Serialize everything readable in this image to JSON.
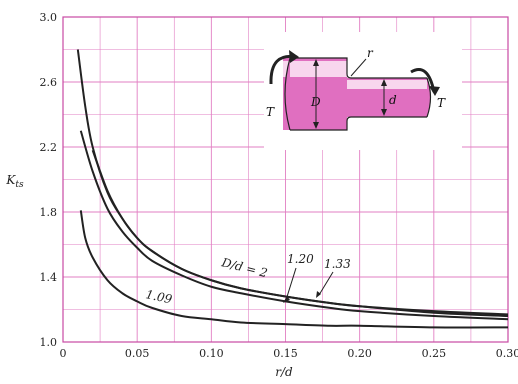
{
  "chart_data": {
    "type": "line",
    "title": "",
    "xlabel": "r/d",
    "ylabel": "K_ts",
    "xlim": [
      0,
      0.3
    ],
    "ylim": [
      1.0,
      3.0
    ],
    "x_ticks": [
      "0",
      "0.05",
      "0.10",
      "0.15",
      "0.20",
      "0.25",
      "0.30"
    ],
    "y_ticks": [
      "1.0",
      "1.4",
      "1.8",
      "2.2",
      "2.6",
      "3.0"
    ],
    "grid": true,
    "grid_minor": true,
    "series": [
      {
        "name": "D/d = 2",
        "label_text": "D/d = 2",
        "x": [
          0.01,
          0.015,
          0.02,
          0.03,
          0.04,
          0.05,
          0.06,
          0.08,
          0.1,
          0.12,
          0.15,
          0.18,
          0.2,
          0.25,
          0.3
        ],
        "y": [
          2.8,
          2.45,
          2.2,
          1.92,
          1.76,
          1.64,
          1.56,
          1.45,
          1.38,
          1.33,
          1.28,
          1.24,
          1.22,
          1.19,
          1.17
        ]
      },
      {
        "name": "1.33",
        "label_text": "1.33",
        "x": [
          0.02,
          0.03,
          0.04,
          0.05,
          0.06,
          0.08,
          0.1,
          0.12,
          0.15,
          0.18,
          0.2,
          0.25,
          0.3
        ],
        "y": [
          2.18,
          1.93,
          1.76,
          1.64,
          1.56,
          1.45,
          1.38,
          1.33,
          1.28,
          1.24,
          1.22,
          1.18,
          1.16
        ]
      },
      {
        "name": "1.20",
        "label_text": "1.20",
        "x": [
          0.012,
          0.02,
          0.03,
          0.04,
          0.05,
          0.06,
          0.08,
          0.1,
          0.12,
          0.15,
          0.18,
          0.2,
          0.25,
          0.3
        ],
        "y": [
          2.3,
          2.05,
          1.82,
          1.68,
          1.58,
          1.5,
          1.41,
          1.34,
          1.3,
          1.25,
          1.21,
          1.19,
          1.16,
          1.14
        ]
      },
      {
        "name": "1.09",
        "label_text": "1.09",
        "x": [
          0.012,
          0.015,
          0.02,
          0.03,
          0.04,
          0.05,
          0.06,
          0.08,
          0.1,
          0.12,
          0.15,
          0.18,
          0.2,
          0.25,
          0.3
        ],
        "y": [
          1.81,
          1.64,
          1.52,
          1.38,
          1.3,
          1.25,
          1.21,
          1.16,
          1.14,
          1.12,
          1.11,
          1.1,
          1.1,
          1.09,
          1.09
        ]
      }
    ],
    "inset_labels": {
      "torque_left": "T",
      "torque_right": "T",
      "big_diameter": "D",
      "small_diameter": "d",
      "fillet_radius": "r"
    },
    "colors": {
      "grid": "#e27fc3",
      "frame": "#c84aa3",
      "curve": "#222222",
      "shaft_fill": "#e06fc0",
      "shaft_highlight": "#f8d6ee"
    }
  }
}
